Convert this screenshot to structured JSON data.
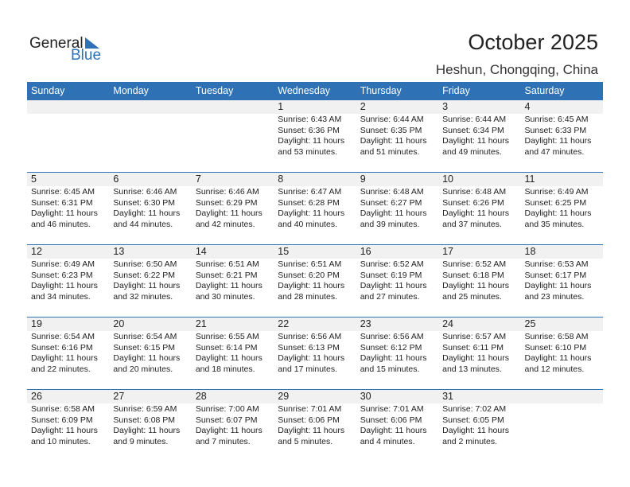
{
  "logo": {
    "general": "General",
    "blue": "Blue"
  },
  "title": "October 2025",
  "location": "Heshun, Chongqing, China",
  "colors": {
    "accent": "#2e72b5",
    "day_strip": "#f1f1f1"
  },
  "weekdays": [
    "Sunday",
    "Monday",
    "Tuesday",
    "Wednesday",
    "Thursday",
    "Friday",
    "Saturday"
  ],
  "weeks": [
    [
      null,
      null,
      null,
      {
        "day": "1",
        "sunrise": "Sunrise: 6:43 AM",
        "sunset": "Sunset: 6:36 PM",
        "daylight1": "Daylight: 11 hours",
        "daylight2": "and 53 minutes."
      },
      {
        "day": "2",
        "sunrise": "Sunrise: 6:44 AM",
        "sunset": "Sunset: 6:35 PM",
        "daylight1": "Daylight: 11 hours",
        "daylight2": "and 51 minutes."
      },
      {
        "day": "3",
        "sunrise": "Sunrise: 6:44 AM",
        "sunset": "Sunset: 6:34 PM",
        "daylight1": "Daylight: 11 hours",
        "daylight2": "and 49 minutes."
      },
      {
        "day": "4",
        "sunrise": "Sunrise: 6:45 AM",
        "sunset": "Sunset: 6:33 PM",
        "daylight1": "Daylight: 11 hours",
        "daylight2": "and 47 minutes."
      }
    ],
    [
      {
        "day": "5",
        "sunrise": "Sunrise: 6:45 AM",
        "sunset": "Sunset: 6:31 PM",
        "daylight1": "Daylight: 11 hours",
        "daylight2": "and 46 minutes."
      },
      {
        "day": "6",
        "sunrise": "Sunrise: 6:46 AM",
        "sunset": "Sunset: 6:30 PM",
        "daylight1": "Daylight: 11 hours",
        "daylight2": "and 44 minutes."
      },
      {
        "day": "7",
        "sunrise": "Sunrise: 6:46 AM",
        "sunset": "Sunset: 6:29 PM",
        "daylight1": "Daylight: 11 hours",
        "daylight2": "and 42 minutes."
      },
      {
        "day": "8",
        "sunrise": "Sunrise: 6:47 AM",
        "sunset": "Sunset: 6:28 PM",
        "daylight1": "Daylight: 11 hours",
        "daylight2": "and 40 minutes."
      },
      {
        "day": "9",
        "sunrise": "Sunrise: 6:48 AM",
        "sunset": "Sunset: 6:27 PM",
        "daylight1": "Daylight: 11 hours",
        "daylight2": "and 39 minutes."
      },
      {
        "day": "10",
        "sunrise": "Sunrise: 6:48 AM",
        "sunset": "Sunset: 6:26 PM",
        "daylight1": "Daylight: 11 hours",
        "daylight2": "and 37 minutes."
      },
      {
        "day": "11",
        "sunrise": "Sunrise: 6:49 AM",
        "sunset": "Sunset: 6:25 PM",
        "daylight1": "Daylight: 11 hours",
        "daylight2": "and 35 minutes."
      }
    ],
    [
      {
        "day": "12",
        "sunrise": "Sunrise: 6:49 AM",
        "sunset": "Sunset: 6:23 PM",
        "daylight1": "Daylight: 11 hours",
        "daylight2": "and 34 minutes."
      },
      {
        "day": "13",
        "sunrise": "Sunrise: 6:50 AM",
        "sunset": "Sunset: 6:22 PM",
        "daylight1": "Daylight: 11 hours",
        "daylight2": "and 32 minutes."
      },
      {
        "day": "14",
        "sunrise": "Sunrise: 6:51 AM",
        "sunset": "Sunset: 6:21 PM",
        "daylight1": "Daylight: 11 hours",
        "daylight2": "and 30 minutes."
      },
      {
        "day": "15",
        "sunrise": "Sunrise: 6:51 AM",
        "sunset": "Sunset: 6:20 PM",
        "daylight1": "Daylight: 11 hours",
        "daylight2": "and 28 minutes."
      },
      {
        "day": "16",
        "sunrise": "Sunrise: 6:52 AM",
        "sunset": "Sunset: 6:19 PM",
        "daylight1": "Daylight: 11 hours",
        "daylight2": "and 27 minutes."
      },
      {
        "day": "17",
        "sunrise": "Sunrise: 6:52 AM",
        "sunset": "Sunset: 6:18 PM",
        "daylight1": "Daylight: 11 hours",
        "daylight2": "and 25 minutes."
      },
      {
        "day": "18",
        "sunrise": "Sunrise: 6:53 AM",
        "sunset": "Sunset: 6:17 PM",
        "daylight1": "Daylight: 11 hours",
        "daylight2": "and 23 minutes."
      }
    ],
    [
      {
        "day": "19",
        "sunrise": "Sunrise: 6:54 AM",
        "sunset": "Sunset: 6:16 PM",
        "daylight1": "Daylight: 11 hours",
        "daylight2": "and 22 minutes."
      },
      {
        "day": "20",
        "sunrise": "Sunrise: 6:54 AM",
        "sunset": "Sunset: 6:15 PM",
        "daylight1": "Daylight: 11 hours",
        "daylight2": "and 20 minutes."
      },
      {
        "day": "21",
        "sunrise": "Sunrise: 6:55 AM",
        "sunset": "Sunset: 6:14 PM",
        "daylight1": "Daylight: 11 hours",
        "daylight2": "and 18 minutes."
      },
      {
        "day": "22",
        "sunrise": "Sunrise: 6:56 AM",
        "sunset": "Sunset: 6:13 PM",
        "daylight1": "Daylight: 11 hours",
        "daylight2": "and 17 minutes."
      },
      {
        "day": "23",
        "sunrise": "Sunrise: 6:56 AM",
        "sunset": "Sunset: 6:12 PM",
        "daylight1": "Daylight: 11 hours",
        "daylight2": "and 15 minutes."
      },
      {
        "day": "24",
        "sunrise": "Sunrise: 6:57 AM",
        "sunset": "Sunset: 6:11 PM",
        "daylight1": "Daylight: 11 hours",
        "daylight2": "and 13 minutes."
      },
      {
        "day": "25",
        "sunrise": "Sunrise: 6:58 AM",
        "sunset": "Sunset: 6:10 PM",
        "daylight1": "Daylight: 11 hours",
        "daylight2": "and 12 minutes."
      }
    ],
    [
      {
        "day": "26",
        "sunrise": "Sunrise: 6:58 AM",
        "sunset": "Sunset: 6:09 PM",
        "daylight1": "Daylight: 11 hours",
        "daylight2": "and 10 minutes."
      },
      {
        "day": "27",
        "sunrise": "Sunrise: 6:59 AM",
        "sunset": "Sunset: 6:08 PM",
        "daylight1": "Daylight: 11 hours",
        "daylight2": "and 9 minutes."
      },
      {
        "day": "28",
        "sunrise": "Sunrise: 7:00 AM",
        "sunset": "Sunset: 6:07 PM",
        "daylight1": "Daylight: 11 hours",
        "daylight2": "and 7 minutes."
      },
      {
        "day": "29",
        "sunrise": "Sunrise: 7:01 AM",
        "sunset": "Sunset: 6:06 PM",
        "daylight1": "Daylight: 11 hours",
        "daylight2": "and 5 minutes."
      },
      {
        "day": "30",
        "sunrise": "Sunrise: 7:01 AM",
        "sunset": "Sunset: 6:06 PM",
        "daylight1": "Daylight: 11 hours",
        "daylight2": "and 4 minutes."
      },
      {
        "day": "31",
        "sunrise": "Sunrise: 7:02 AM",
        "sunset": "Sunset: 6:05 PM",
        "daylight1": "Daylight: 11 hours",
        "daylight2": "and 2 minutes."
      },
      null
    ]
  ]
}
